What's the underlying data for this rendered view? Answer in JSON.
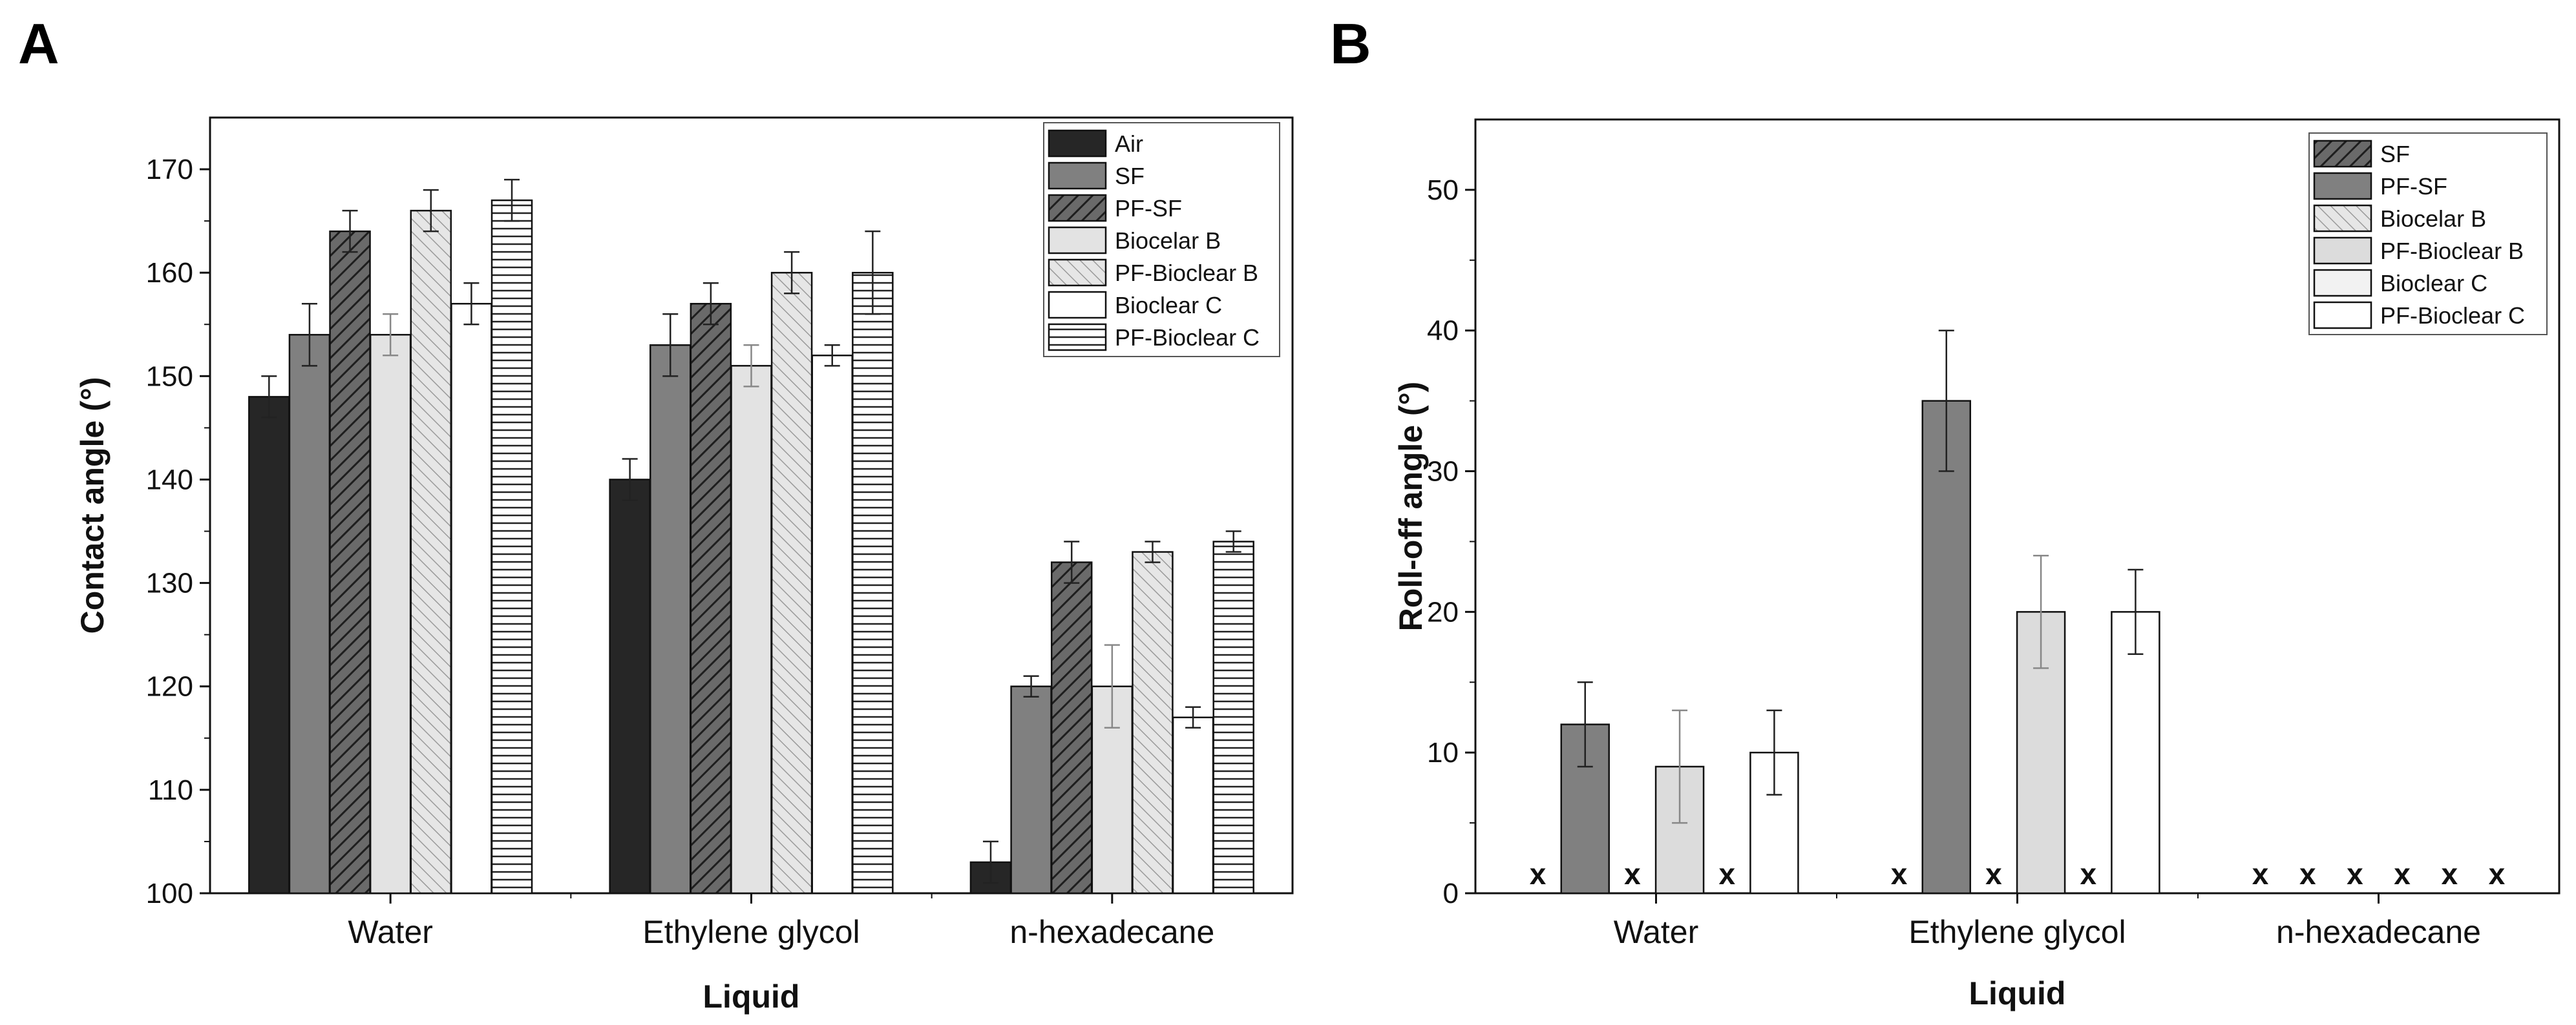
{
  "chart_data": [
    {
      "panel": "A",
      "type": "bar",
      "xlabel": "Liquid",
      "ylabel": "Contact angle (°)",
      "ylim": [
        100,
        175
      ],
      "yticks": [
        100,
        110,
        120,
        130,
        140,
        150,
        160,
        170
      ],
      "categories": [
        "Water",
        "Ethylene glycol",
        "n-hexadecane"
      ],
      "legend_position": "top-right",
      "series": [
        {
          "name": "Air",
          "color": "#262626",
          "pattern": "solid",
          "values": [
            148,
            140,
            103
          ],
          "errors": [
            2,
            2,
            2
          ]
        },
        {
          "name": "SF",
          "color": "#808080",
          "pattern": "solid",
          "values": [
            154,
            153,
            120
          ],
          "errors": [
            3,
            3,
            1
          ]
        },
        {
          "name": "PF-SF",
          "color": "#5c5c5c",
          "pattern": "hatch-dense",
          "values": [
            164,
            157,
            132
          ],
          "errors": [
            2,
            2,
            2
          ]
        },
        {
          "name": "Biocelar B",
          "color": "#e3e3e3",
          "pattern": "solid",
          "values": [
            154,
            151,
            120
          ],
          "errors": [
            2,
            2,
            4
          ]
        },
        {
          "name": "PF-Bioclear B",
          "color": "#d0d0d0",
          "pattern": "hatch-light",
          "values": [
            166,
            160,
            133
          ],
          "errors": [
            2,
            2,
            1
          ]
        },
        {
          "name": "Bioclear C",
          "color": "#ffffff",
          "pattern": "solid",
          "values": [
            157,
            152,
            117
          ],
          "errors": [
            2,
            1,
            1
          ]
        },
        {
          "name": "PF-Bioclear C",
          "color": "#ffffff",
          "pattern": "horizontal",
          "values": [
            167,
            160,
            134
          ],
          "errors": [
            2,
            4,
            1
          ]
        }
      ]
    },
    {
      "panel": "B",
      "type": "bar",
      "xlabel": "Liquid",
      "ylabel": "Roll-off angle (°)",
      "ylim": [
        0,
        55
      ],
      "yticks": [
        0,
        10,
        20,
        30,
        40,
        50
      ],
      "categories": [
        "Water",
        "Ethylene glycol",
        "n-hexadecane"
      ],
      "legend_position": "top-right",
      "no_rolloff_marker": "x",
      "series": [
        {
          "name": "SF",
          "color": "#5c5c5c",
          "pattern": "hatch-dense",
          "values": [
            null,
            null,
            null
          ],
          "errors": [
            null,
            null,
            null
          ]
        },
        {
          "name": "PF-SF",
          "color": "#808080",
          "pattern": "solid",
          "values": [
            12,
            35,
            null
          ],
          "errors": [
            3,
            5,
            null
          ]
        },
        {
          "name": "Biocelar B",
          "color": "#bdbdbd",
          "pattern": "hatch-light",
          "values": [
            null,
            null,
            null
          ],
          "errors": [
            null,
            null,
            null
          ]
        },
        {
          "name": "PF-Bioclear B",
          "color": "#dcdcdc",
          "pattern": "solid",
          "values": [
            9,
            20,
            null
          ],
          "errors": [
            4,
            4,
            null
          ]
        },
        {
          "name": "Bioclear C",
          "color": "#f2f2f2",
          "pattern": "solid",
          "values": [
            null,
            null,
            null
          ],
          "errors": [
            null,
            null,
            null
          ]
        },
        {
          "name": "PF-Bioclear C",
          "color": "#ffffff",
          "pattern": "solid",
          "values": [
            10,
            20,
            null
          ],
          "errors": [
            3,
            3,
            null
          ]
        }
      ]
    }
  ]
}
